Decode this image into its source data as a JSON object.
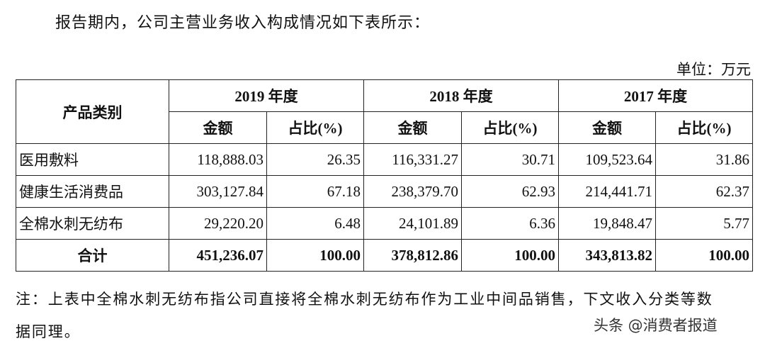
{
  "intro": "报告期内，公司主营业务收入构成情况如下表所示：",
  "unit": "单位：万元",
  "table": {
    "category_header": "产品类别",
    "years": [
      {
        "year": "2019 年度",
        "amount": "金额",
        "share": "占比(%)"
      },
      {
        "year": "2018 年度",
        "amount": "金额",
        "share": "占比(%)"
      },
      {
        "year": "2017 年度",
        "amount": "金额",
        "share": "占比(%)"
      }
    ],
    "rows": [
      [
        "医用敷料",
        "118,888.03",
        "26.35",
        "116,331.27",
        "30.71",
        "109,523.64",
        "31.86"
      ],
      [
        "健康生活消费品",
        "303,127.84",
        "67.18",
        "238,379.70",
        "62.93",
        "214,441.71",
        "62.37"
      ],
      [
        "全棉水刺无纺布",
        "29,220.20",
        "6.48",
        "24,101.89",
        "6.36",
        "19,848.47",
        "5.77"
      ]
    ],
    "total": [
      "合计",
      "451,236.07",
      "100.00",
      "378,812.86",
      "100.00",
      "343,813.82",
      "100.00"
    ]
  },
  "note": [
    "注：上表中全棉水刺无纺布指公司直接将全棉水刺无纺布作为工业中间品销售，下文收入分类等数",
    "据同理。"
  ],
  "watermark": "头条 @消费者报道"
}
